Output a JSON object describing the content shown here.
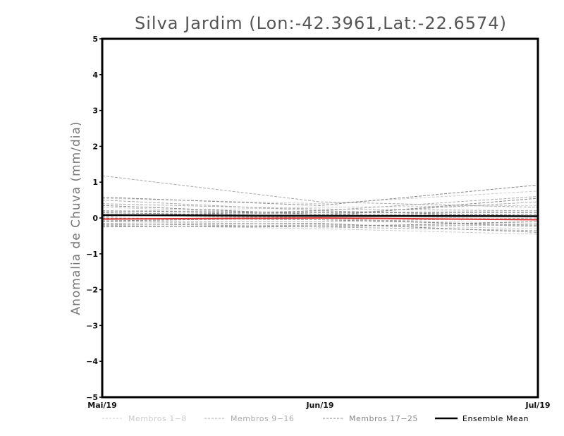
{
  "chart_data": {
    "type": "line",
    "title": "Silva Jardim (Lon:-42.3961,Lat:-22.6574)",
    "xlabel": "",
    "ylabel": "Anomalia de Chuva (mm/dia)",
    "categories": [
      "Mai/19",
      "Jun/19",
      "Jul/19"
    ],
    "ylim": [
      -5,
      5
    ],
    "yticks": [
      5,
      4,
      3,
      2,
      1,
      0,
      -1,
      -2,
      -3,
      -4,
      -5
    ],
    "grid": false,
    "legend_position": "bottom",
    "legend": [
      {
        "label": "Membros 1-8",
        "color": "#cccccc"
      },
      {
        "label": "Membros 9-16",
        "color": "#aaaaaa"
      },
      {
        "label": "Membros 17-25",
        "color": "#888888"
      },
      {
        "label": "Ensemble Mean",
        "color": "#000000"
      }
    ],
    "series": [
      {
        "group": 1,
        "values": [
          0.55,
          0.4,
          0.75
        ]
      },
      {
        "group": 1,
        "values": [
          0.18,
          0.3,
          0.35
        ]
      },
      {
        "group": 1,
        "values": [
          -0.1,
          -0.18,
          -0.3
        ]
      },
      {
        "group": 1,
        "values": [
          0.05,
          0.15,
          0.2
        ]
      },
      {
        "group": 1,
        "values": [
          -0.2,
          -0.3,
          -0.45
        ]
      },
      {
        "group": 1,
        "values": [
          0.3,
          0.1,
          -0.05
        ]
      },
      {
        "group": 1,
        "values": [
          -0.05,
          0.05,
          0.1
        ]
      },
      {
        "group": 1,
        "values": [
          0.12,
          -0.05,
          -0.15
        ]
      },
      {
        "group": 2,
        "values": [
          1.18,
          0.45,
          0.3
        ]
      },
      {
        "group": 2,
        "values": [
          0.5,
          0.2,
          0.6
        ]
      },
      {
        "group": 2,
        "values": [
          -0.15,
          -0.25,
          -0.35
        ]
      },
      {
        "group": 2,
        "values": [
          0.2,
          0.1,
          0.45
        ]
      },
      {
        "group": 2,
        "values": [
          -0.25,
          -0.2,
          -0.2
        ]
      },
      {
        "group": 2,
        "values": [
          0.1,
          0.0,
          -0.25
        ]
      },
      {
        "group": 2,
        "values": [
          -0.1,
          -0.1,
          0.0
        ]
      },
      {
        "group": 2,
        "values": [
          0.4,
          0.25,
          0.2
        ]
      },
      {
        "group": 3,
        "values": [
          0.58,
          0.35,
          0.92
        ]
      },
      {
        "group": 3,
        "values": [
          0.15,
          0.05,
          0.55
        ]
      },
      {
        "group": 3,
        "values": [
          -0.18,
          -0.15,
          -0.4
        ]
      },
      {
        "group": 3,
        "values": [
          0.05,
          0.2,
          0.05
        ]
      },
      {
        "group": 3,
        "values": [
          -0.22,
          -0.25,
          -0.1
        ]
      },
      {
        "group": 3,
        "values": [
          0.2,
          0.15,
          0.15
        ]
      },
      {
        "group": 3,
        "values": [
          0.0,
          -0.05,
          -0.2
        ]
      },
      {
        "group": 3,
        "values": [
          0.35,
          0.1,
          0.1
        ]
      },
      {
        "group": 3,
        "values": [
          -0.08,
          0.0,
          -0.05
        ]
      },
      {
        "group": 0,
        "values": [
          0.08,
          0.06,
          0.05
        ]
      },
      {
        "group": 4,
        "values": [
          -0.03,
          0.0,
          -0.05
        ]
      }
    ]
  }
}
